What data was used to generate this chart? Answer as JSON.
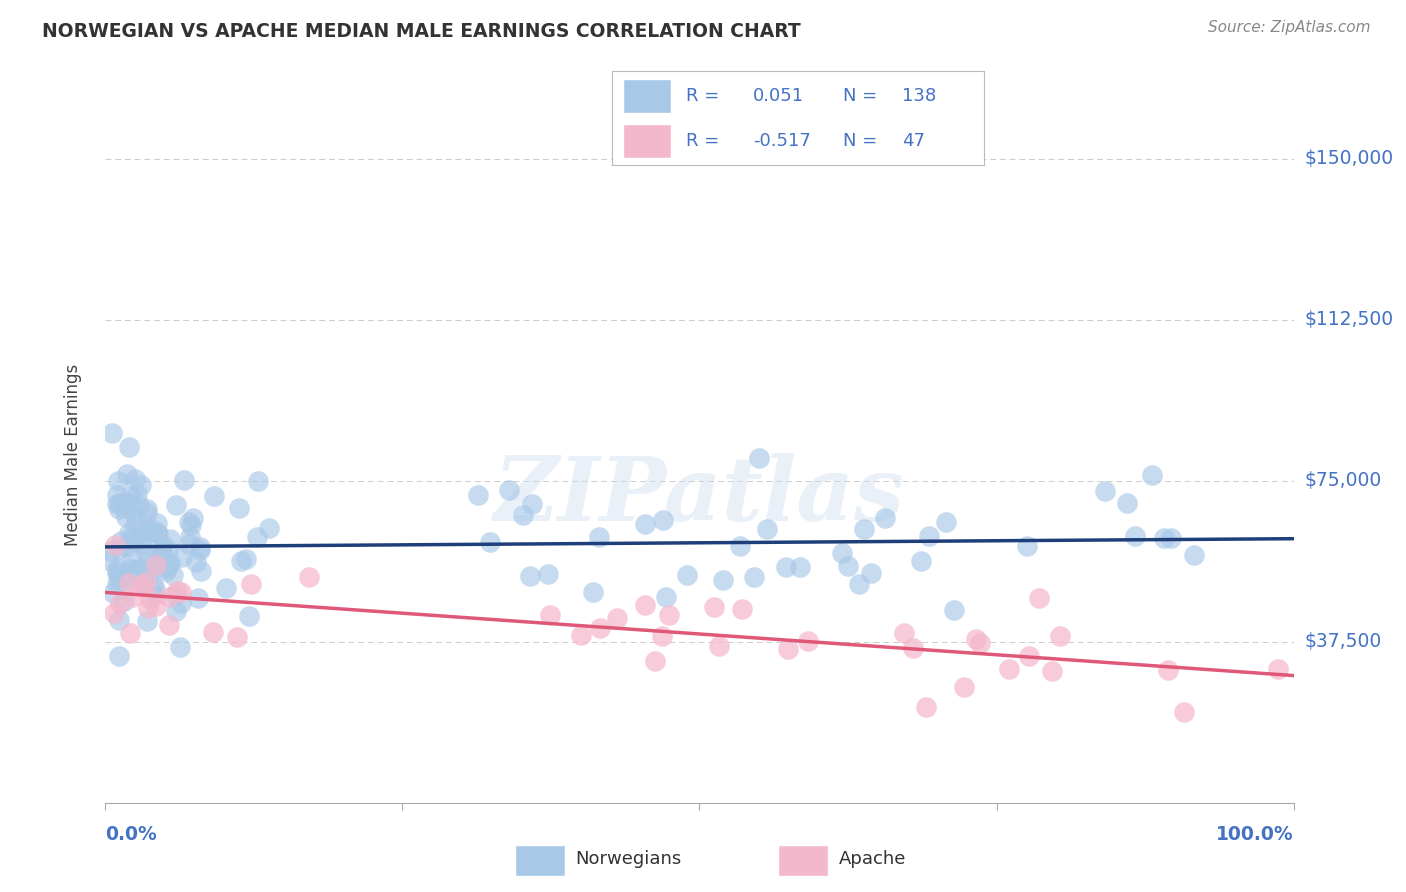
{
  "title": "NORWEGIAN VS APACHE MEDIAN MALE EARNINGS CORRELATION CHART",
  "source": "Source: ZipAtlas.com",
  "ylabel": "Median Male Earnings",
  "y_ticks": [
    0,
    37500,
    75000,
    112500,
    150000
  ],
  "y_tick_labels": [
    "",
    "$37,500",
    "$75,000",
    "$112,500",
    "$150,000"
  ],
  "ylim": [
    0,
    162000
  ],
  "xlim": [
    0.0,
    1.0
  ],
  "norwegian_R": 0.051,
  "norwegian_N": 138,
  "apache_R": -0.517,
  "apache_N": 47,
  "blue_scatter_color": "#a8c8e8",
  "blue_line_color": "#1e3f7a",
  "pink_scatter_color": "#f4b8cc",
  "pink_line_color": "#e05878",
  "text_blue": "#4472c4",
  "grid_color": "#cccccc",
  "bg_color": "#ffffff",
  "title_color": "#333333",
  "source_color": "#888888",
  "label_color": "#444444"
}
